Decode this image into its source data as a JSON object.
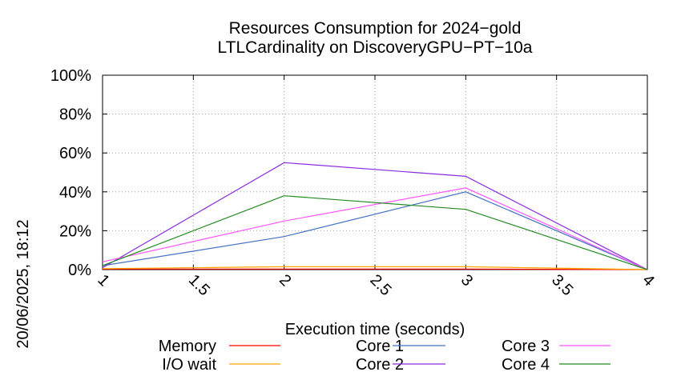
{
  "chart_data": {
    "type": "line",
    "title": "Resources Consumption for 2024−gold",
    "subtitle": "LTLCardinality on DiscoveryGPU−PT−10a",
    "xlabel": "Execution time (seconds)",
    "ylabel": "",
    "side_label": "20/06/2025, 18:12",
    "xlim": [
      1,
      4
    ],
    "ylim": [
      0,
      100
    ],
    "x_ticks": [
      1,
      1.5,
      2,
      2.5,
      3,
      3.5,
      4
    ],
    "x_tick_labels": [
      "1",
      "1.5",
      "2",
      "2.5",
      "3",
      "3.5",
      "4"
    ],
    "y_ticks": [
      0,
      20,
      40,
      60,
      80,
      100
    ],
    "y_tick_labels": [
      "0%",
      "20%",
      "40%",
      "60%",
      "80%",
      "100%"
    ],
    "grid": true,
    "legend_position": "bottom",
    "x": [
      1,
      2,
      3,
      4
    ],
    "series": [
      {
        "name": "Memory",
        "color": "#ff0000",
        "values": [
          0.3,
          0.3,
          0.3,
          0
        ]
      },
      {
        "name": "I/O wait",
        "color": "#ffa500",
        "values": [
          0.5,
          1.5,
          1.5,
          0
        ]
      },
      {
        "name": "Core 1",
        "color": "#4472c4",
        "values": [
          2,
          17,
          40,
          0
        ]
      },
      {
        "name": "Core 2",
        "color": "#8a2be2",
        "values": [
          1,
          55,
          48,
          0
        ]
      },
      {
        "name": "Core 3",
        "color": "#ff55ff",
        "values": [
          4,
          25,
          42,
          0
        ]
      },
      {
        "name": "Core 4",
        "color": "#228b22",
        "values": [
          2,
          38,
          31,
          0
        ]
      }
    ]
  }
}
